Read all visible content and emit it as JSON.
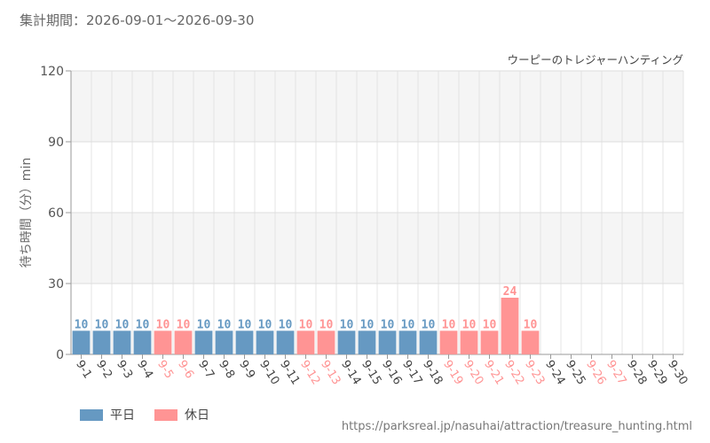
{
  "header": {
    "period_label": "集計期間：",
    "period_start": "2026-09-01",
    "period_separator": "〜",
    "period_end": "2026-09-30"
  },
  "colors": {
    "weekday": "#6699c2",
    "holiday": "#ff9494",
    "grid": "#dddddd",
    "band": "#f5f5f5",
    "axis": "#999999"
  },
  "legend": [
    {
      "label": "平日",
      "color": "#6699c2"
    },
    {
      "label": "休日",
      "color": "#ff9494"
    }
  ],
  "source_url": "https://parksreal.jp/nasuhai/attraction/treasure_hunting.html",
  "chart_data": {
    "type": "bar",
    "title": "ウーピーのトレジャーハンティング",
    "ylabel": "待ち時間（分）min",
    "ylim": [
      0,
      120
    ],
    "yticks": [
      0,
      30,
      60,
      90,
      120
    ],
    "categories": [
      "9-1",
      "9-2",
      "9-3",
      "9-4",
      "9-5",
      "9-6",
      "9-7",
      "9-8",
      "9-9",
      "9-10",
      "9-11",
      "9-12",
      "9-13",
      "9-14",
      "9-15",
      "9-16",
      "9-17",
      "9-18",
      "9-19",
      "9-20",
      "9-21",
      "9-22",
      "9-23",
      "9-24",
      "9-25",
      "9-26",
      "9-27",
      "9-28",
      "9-29",
      "9-30"
    ],
    "day_types": [
      "weekday",
      "weekday",
      "weekday",
      "weekday",
      "holiday",
      "holiday",
      "weekday",
      "weekday",
      "weekday",
      "weekday",
      "weekday",
      "holiday",
      "holiday",
      "weekday",
      "weekday",
      "weekday",
      "weekday",
      "weekday",
      "holiday",
      "holiday",
      "holiday",
      "holiday",
      "holiday",
      "weekday",
      "weekday",
      "holiday",
      "holiday",
      "weekday",
      "weekday",
      "weekday"
    ],
    "values": [
      10,
      10,
      10,
      10,
      10,
      10,
      10,
      10,
      10,
      10,
      10,
      10,
      10,
      10,
      10,
      10,
      10,
      10,
      10,
      10,
      10,
      24,
      10,
      null,
      null,
      null,
      null,
      null,
      null,
      null
    ],
    "series": [
      {
        "name": "平日",
        "color": "#6699c2"
      },
      {
        "name": "休日",
        "color": "#ff9494"
      }
    ],
    "grid": true,
    "legend_position": "bottom-left"
  }
}
